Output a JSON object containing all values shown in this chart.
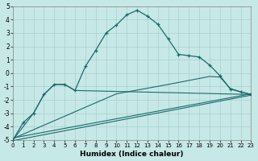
{
  "xlabel": "Humidex (Indice chaleur)",
  "xlim": [
    0,
    23
  ],
  "ylim": [
    -5,
    5
  ],
  "xticks": [
    0,
    1,
    2,
    3,
    4,
    5,
    6,
    7,
    8,
    9,
    10,
    11,
    12,
    13,
    14,
    15,
    16,
    17,
    18,
    19,
    20,
    21,
    22,
    23
  ],
  "yticks": [
    -5,
    -4,
    -3,
    -2,
    -1,
    0,
    1,
    2,
    3,
    4,
    5
  ],
  "bg_color": "#c6e8e6",
  "grid_color": "#a8d0ce",
  "line_color": "#1a6b6b",
  "line1_x": [
    0,
    1,
    2,
    3,
    4,
    5,
    6,
    7,
    8,
    9,
    10,
    11,
    12,
    13,
    14,
    15,
    16,
    17,
    18,
    19,
    20,
    21,
    22,
    23
  ],
  "line1_y": [
    -5.0,
    -3.7,
    -3.0,
    -1.6,
    -0.85,
    -0.85,
    -1.3,
    0.5,
    1.7,
    3.0,
    3.6,
    4.35,
    4.7,
    4.25,
    3.65,
    2.55,
    1.4,
    1.3,
    1.2,
    0.6,
    -0.2,
    -1.2,
    -1.4,
    -1.6
  ],
  "line2_x": [
    0,
    2,
    3,
    4,
    5,
    6,
    23
  ],
  "line2_y": [
    -5.0,
    -3.0,
    -1.6,
    -0.85,
    -0.85,
    -1.3,
    -1.6
  ],
  "line3_x": [
    0,
    10,
    15,
    19,
    20,
    21,
    22,
    23
  ],
  "line3_y": [
    -4.9,
    -1.55,
    -0.85,
    -0.25,
    -0.3,
    -1.15,
    -1.4,
    -1.6
  ],
  "line4_x": [
    0,
    23
  ],
  "line4_y": [
    -4.85,
    -1.55
  ],
  "line5_x": [
    0,
    23
  ],
  "line5_y": [
    -5.05,
    -1.65
  ]
}
